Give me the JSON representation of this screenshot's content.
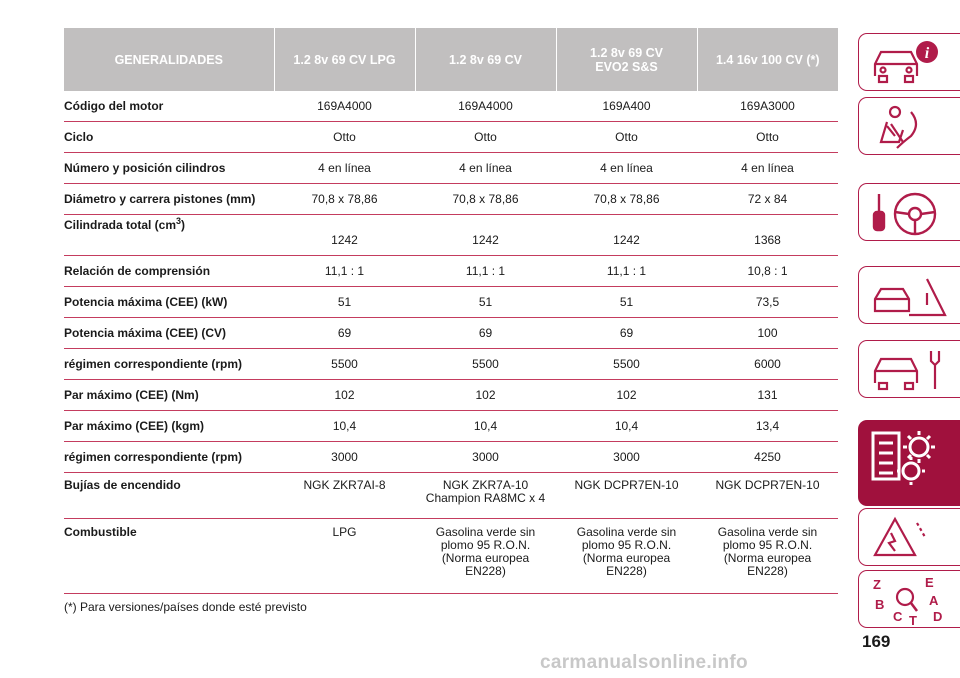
{
  "table": {
    "headers": [
      "GENERALIDADES",
      "1.2 8v 69 CV LPG",
      "1.2 8v 69 CV",
      "1.2 8v 69 CV\nEVO2 S&S",
      "1.4 16v 100 CV (*)"
    ],
    "rows": [
      {
        "label": "Código del motor",
        "values": [
          "169A4000",
          "169A4000",
          "169A400",
          "169A3000"
        ]
      },
      {
        "label": "Ciclo",
        "values": [
          "Otto",
          "Otto",
          "Otto",
          "Otto"
        ]
      },
      {
        "label": "Número y posición cilindros",
        "values": [
          "4 en línea",
          "4 en línea",
          "4 en línea",
          "4 en línea"
        ]
      },
      {
        "label": "Diámetro y carrera pistones (mm)",
        "values": [
          "70,8 x 78,86",
          "70,8 x 78,86",
          "70,8 x 78,86",
          "72 x 84"
        ]
      },
      {
        "label": "Cilindrada total (cm",
        "label_sup": "3",
        "label_after": ")",
        "values": [
          "1242",
          "1242",
          "1242",
          "1368"
        ]
      },
      {
        "label": "Relación de comprensión",
        "values": [
          "11,1 : 1",
          "11,1 : 1",
          "11,1 : 1",
          "10,8 : 1"
        ]
      },
      {
        "label": "Potencia máxima (CEE) (kW)",
        "values": [
          "51",
          "51",
          "51",
          "73,5"
        ]
      },
      {
        "label": "Potencia máxima (CEE) (CV)",
        "values": [
          "69",
          "69",
          "69",
          "100"
        ]
      },
      {
        "label": "régimen correspondiente (rpm)",
        "values": [
          "5500",
          "5500",
          "5500",
          "6000"
        ]
      },
      {
        "label": "Par máximo (CEE) (Nm)",
        "values": [
          "102",
          "102",
          "102",
          "131"
        ]
      },
      {
        "label": "Par máximo (CEE) (kgm)",
        "values": [
          "10,4",
          "10,4",
          "10,4",
          "13,4"
        ]
      },
      {
        "label": "régimen correspondiente (rpm)",
        "values": [
          "3000",
          "3000",
          "3000",
          "4250"
        ]
      },
      {
        "label": "Bujías de encendido",
        "values": [
          "NGK ZKR7AI-8",
          "NGK ZKR7A-10\nChampion RA8MC x 4",
          "NGK DCPR7EN-10",
          "NGK DCPR7EN-10"
        ]
      },
      {
        "label": "Combustible",
        "values": [
          "LPG",
          "Gasolina verde sin\nplomo 95 R.O.N.\n(Norma europea\nEN228)",
          "Gasolina verde sin\nplomo 95 R.O.N.\n(Norma europea\nEN228)",
          "Gasolina verde sin\nplomo 95 R.O.N.\n(Norma europea\nEN228)"
        ]
      }
    ]
  },
  "footnote": "(*) Para versiones/países donde esté previsto",
  "page_number": "169",
  "watermark": "carmanualsonline.info",
  "sidebar": {
    "tabs": [
      {
        "icon": "car-info-icon",
        "active": false
      },
      {
        "icon": "airbag-passenger-icon",
        "active": false
      },
      {
        "icon": "steering-wheel-key-icon",
        "active": false
      },
      {
        "icon": "warning-triangle-car-icon",
        "active": false
      },
      {
        "icon": "car-wrench-icon",
        "active": false
      },
      {
        "icon": "technical-data-gear-icon",
        "active": true
      },
      {
        "icon": "warning-triangle-icon",
        "active": false
      },
      {
        "icon": "alphabetical-index-icon",
        "active": false
      }
    ],
    "index_letters": [
      "Z",
      "E",
      "B",
      "A",
      "C",
      "T",
      "D"
    ]
  },
  "colors": {
    "header_bg": "#c1bfbf",
    "rule": "#c43c5e",
    "accent": "#a0113d"
  }
}
